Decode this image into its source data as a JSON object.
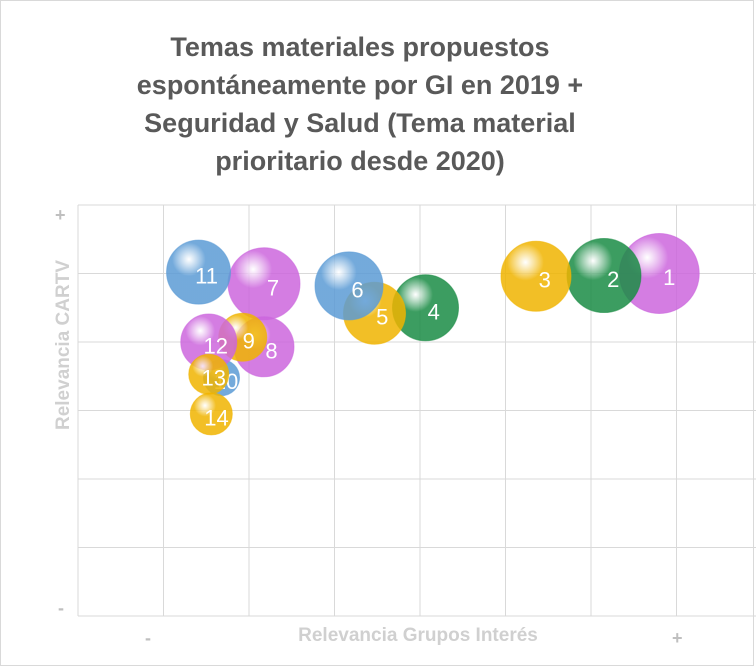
{
  "chart_data": {
    "type": "bubble",
    "title": [
      "Temas materiales propuestos",
      "espontáneamente por GI en 2019 +",
      "Seguridad y Salud (Tema material",
      "prioritario desde 2020)"
    ],
    "xlabel": "Relevancia Grupos Interés",
    "ylabel": "Relevancia CARTV",
    "x_ticks": [
      "-",
      "+"
    ],
    "y_ticks": [
      "+",
      "-"
    ],
    "grid": true,
    "xlim": [
      0,
      8
    ],
    "ylim": [
      0,
      6
    ],
    "points": [
      {
        "label": "1",
        "x": 5.85,
        "y": 5.0,
        "size": 40,
        "color": "#cc66dd"
      },
      {
        "label": "2",
        "x": 5.2,
        "y": 4.97,
        "size": 37,
        "color": "#1a8c45"
      },
      {
        "label": "3",
        "x": 4.4,
        "y": 4.96,
        "size": 35,
        "color": "#f0b400"
      },
      {
        "label": "4",
        "x": 3.1,
        "y": 4.5,
        "size": 33,
        "color": "#1a8c45"
      },
      {
        "label": "5",
        "x": 2.5,
        "y": 4.42,
        "size": 31,
        "color": "#f0b400"
      },
      {
        "label": "6",
        "x": 2.2,
        "y": 4.82,
        "size": 34,
        "color": "#5b9bd5"
      },
      {
        "label": "7",
        "x": 1.2,
        "y": 4.85,
        "size": 36,
        "color": "#cc66dd"
      },
      {
        "label": "8",
        "x": 1.2,
        "y": 3.93,
        "size": 30,
        "color": "#cc66dd"
      },
      {
        "label": "9",
        "x": 0.95,
        "y": 4.07,
        "size": 24,
        "color": "#f0b400"
      },
      {
        "label": "10",
        "x": 0.7,
        "y": 3.48,
        "size": 18,
        "color": "#5b9bd5"
      },
      {
        "label": "11",
        "x": 0.43,
        "y": 5.02,
        "size": 32,
        "color": "#5b9bd5"
      },
      {
        "label": "12",
        "x": 0.55,
        "y": 4.0,
        "size": 28,
        "color": "#cc66dd"
      },
      {
        "label": "13",
        "x": 0.55,
        "y": 3.53,
        "size": 20,
        "color": "#f0b400"
      },
      {
        "label": "14",
        "x": 0.58,
        "y": 2.95,
        "size": 21,
        "color": "#f0b400"
      }
    ]
  }
}
